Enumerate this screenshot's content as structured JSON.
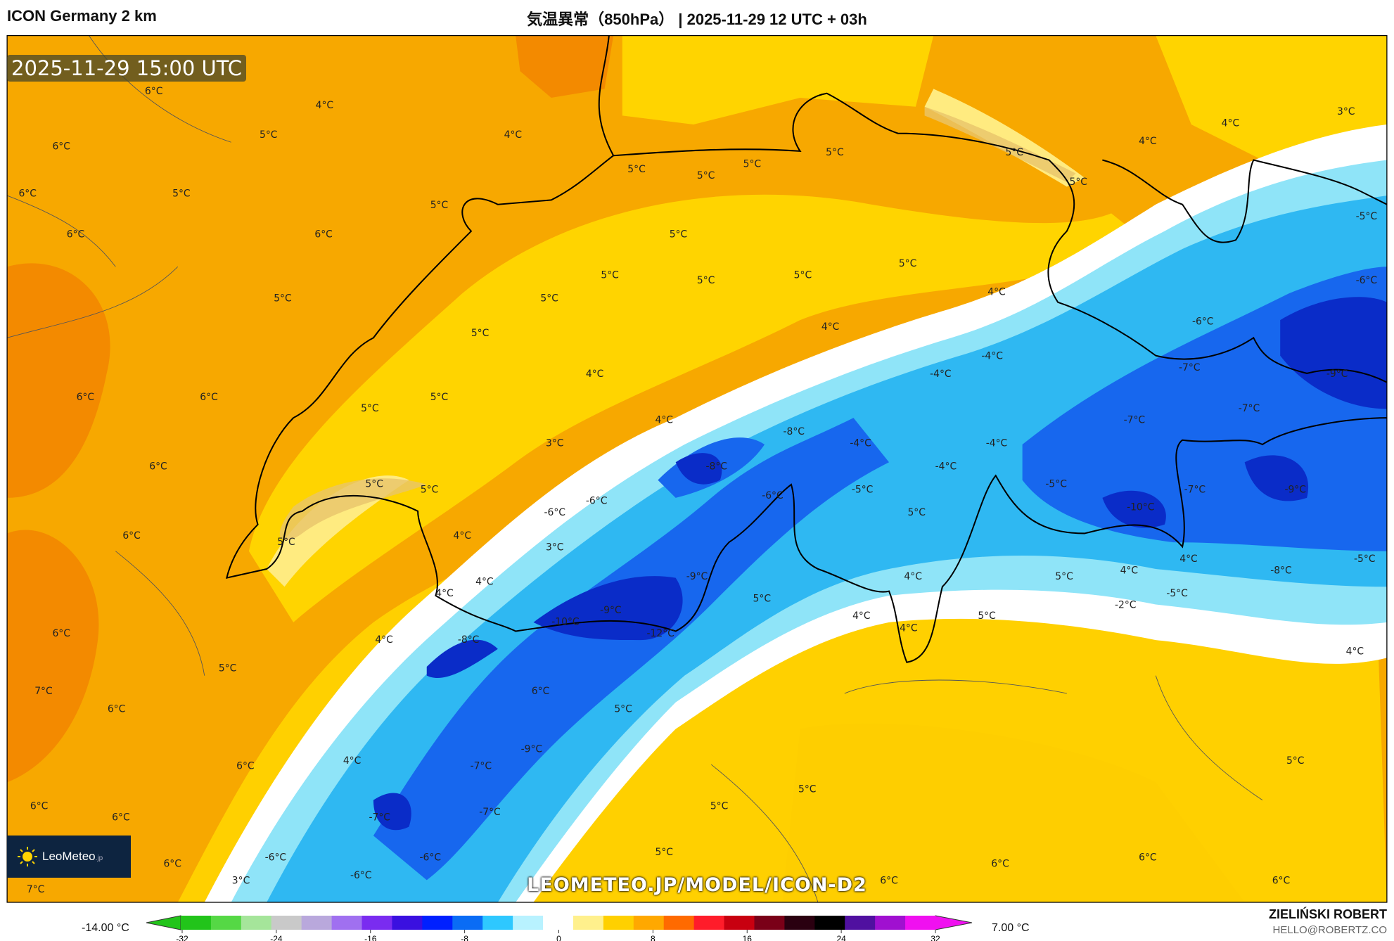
{
  "header": {
    "model": "ICON Germany 2 km",
    "title": "気温異常（850hPa） | 2025-11-29 12 UTC + 03h"
  },
  "valid_time": "2025-11-29 15:00 UTC",
  "watermark": "LEOMETEO.JP/MODEL/ICON-D2",
  "logo": {
    "text": "LeoMeteo",
    "suffix": ".jp"
  },
  "colorbar": {
    "min_label": "-14.00 °C",
    "max_label": "7.00 °C",
    "ticks": [
      "-32",
      "-24",
      "-16",
      "-8",
      "0",
      "8",
      "16",
      "24",
      "32"
    ],
    "colors": [
      "#22c41a",
      "#55d845",
      "#a5e59a",
      "#c9c9c9",
      "#b9a8dc",
      "#a070f0",
      "#7a2cf0",
      "#3a10e0",
      "#0020ff",
      "#0a6cf5",
      "#2ec8ff",
      "#b8f2ff",
      "#ffffff",
      "#fff08c",
      "#ffd000",
      "#ffa800",
      "#ff6a00",
      "#ff1c2a",
      "#c80010",
      "#7a0018",
      "#2a0010",
      "#000000",
      "#5010a0",
      "#a010d0",
      "#f010f0"
    ]
  },
  "author": {
    "name": "ZIELIŃSKI ROBERT",
    "email": "HELLO@ROBERTZ.CO"
  },
  "map_colors": {
    "warm": "#f7a800",
    "warmer": "#f38a00",
    "yellow": "#ffd400",
    "pale_yellow": "#ffeb80",
    "white": "#ffffff",
    "light_blue": "#8fe4f8",
    "cyan": "#2fb8f2",
    "blue": "#1767ee",
    "dark_blue": "#0a2cc8"
  },
  "labels": [
    "6°C",
    "4°C",
    "5°C",
    "4°C",
    "6°C",
    "6°C",
    "5°C",
    "6°C",
    "6°C",
    "5°C",
    "5°C",
    "5°C",
    "5°C",
    "5°C",
    "5°C",
    "5°C",
    "5°C",
    "5°C",
    "5°C",
    "5°C",
    "4°C",
    "5°C",
    "5°C",
    "4°C",
    "5°C",
    "5°C",
    "4°C",
    "4°C",
    "3°C",
    "-5°C",
    "-6°C",
    "-6°C",
    "-4°C",
    "-4°C",
    "-7°C",
    "-9°C",
    "-7°C",
    "-7°C",
    "-4°C",
    "-4°C",
    "-4°C",
    "-8°C",
    "-8°C",
    "4°C",
    "4°C",
    "5°C",
    "5°C",
    "6°C",
    "6°C",
    "6°C",
    "3°C",
    "5°C",
    "5°C",
    "-6°C",
    "-5°C",
    "-5°C",
    "-7°C",
    "-9°C",
    "-10°C",
    "5°C",
    "-6°C",
    "-6°C",
    "4°C",
    "6°C",
    "5°C",
    "3°C",
    "4°C",
    "-9°C",
    "4°C",
    "5°C",
    "4°C",
    "4°C",
    "-8°C",
    "-5°C",
    "-5°C",
    "-2°C",
    "4°C",
    "5°C",
    "-9°C",
    "-10°C",
    "4°C",
    "5°C",
    "4°C",
    "6°C",
    "4°C",
    "-8°C",
    "-12°C",
    "5°C",
    "7°C",
    "6°C",
    "4°C",
    "6°C",
    "5°C",
    "-9°C",
    "4°C",
    "-7°C",
    "6°C",
    "5°C",
    "5°C",
    "6°C",
    "6°C",
    "-7°C",
    "-7°C",
    "5°C",
    "5°C",
    "6°C",
    "-6°C",
    "-6°C",
    "6°C",
    "6°C",
    "3°C",
    "-6°C",
    "6°C",
    "6°C",
    "7°C"
  ]
}
